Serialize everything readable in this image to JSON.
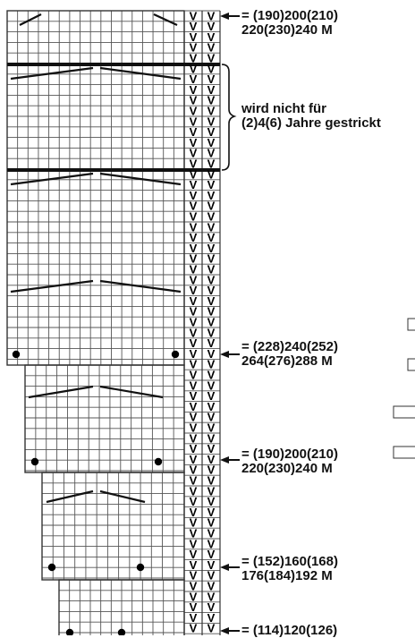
{
  "stitch_annotations": [
    {
      "line1": "= (190)200(210)",
      "line2": "220(230)240 M"
    },
    {
      "line1": "= (228)240(252)",
      "line2": "264(276)288 M"
    },
    {
      "line1": "= (190)200(210)",
      "line2": "220(230)240 M"
    },
    {
      "line1": "= (152)160(168)",
      "line2": "176(184)192 M"
    },
    {
      "line1": "= (114)120(126)",
      "line2": ""
    }
  ],
  "bracket_note": {
    "line1": "wird nicht für",
    "line2": "(2)4(6) Jahre gestrickt"
  },
  "column_symbol": "V",
  "colors": {
    "grid": "#555555",
    "thick": "#111111",
    "mark": "#000000"
  }
}
